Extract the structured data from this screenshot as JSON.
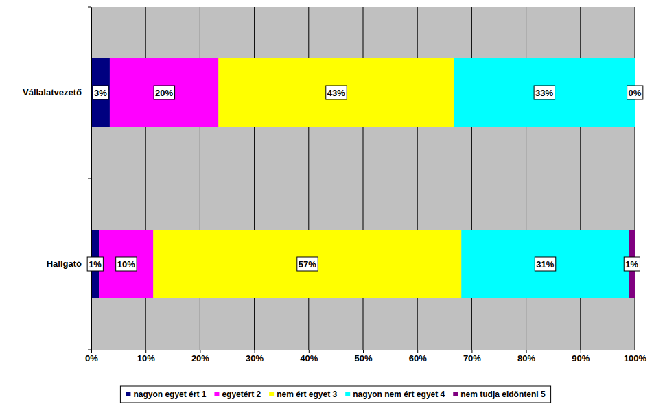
{
  "chart_data": {
    "type": "bar",
    "orientation": "horizontal",
    "stacked": true,
    "data_labels": true,
    "grid": true,
    "legend": "bottom",
    "categories": [
      "Vállalatvezető",
      "Hallgató"
    ],
    "xlim": [
      0,
      100
    ],
    "xticks": [
      {
        "value": 0,
        "label": "0%"
      },
      {
        "value": 10,
        "label": "10%"
      },
      {
        "value": 20,
        "label": "20%"
      },
      {
        "value": 30,
        "label": "30%"
      },
      {
        "value": 40,
        "label": "40%"
      },
      {
        "value": 50,
        "label": "50%"
      },
      {
        "value": 60,
        "label": "60%"
      },
      {
        "value": 70,
        "label": "70%"
      },
      {
        "value": 80,
        "label": "80%"
      },
      {
        "value": 90,
        "label": "90%"
      },
      {
        "value": 100,
        "label": "100%"
      }
    ],
    "series": [
      {
        "name": "nagyon egyet ért 1",
        "color": "#000080",
        "values": [
          3.4,
          1.4
        ],
        "value_labels": [
          "3%",
          "1%"
        ]
      },
      {
        "name": "egyetért 2",
        "color": "#FF00FF",
        "values": [
          20,
          10
        ],
        "value_labels": [
          "20%",
          "10%"
        ]
      },
      {
        "name": "nem ért egyet 3",
        "color": "#FFFF00",
        "values": [
          43.3,
          56.7
        ],
        "value_labels": [
          "43%",
          "57%"
        ]
      },
      {
        "name": "nagyon nem ért egyet 4",
        "color": "#00FFFF",
        "values": [
          33.3,
          30.8
        ],
        "value_labels": [
          "33%",
          "31%"
        ]
      },
      {
        "name": "nem tudja eldönteni 5",
        "color": "#800080",
        "values": [
          0,
          1.1
        ],
        "value_labels": [
          "0%",
          "1%"
        ]
      }
    ]
  }
}
